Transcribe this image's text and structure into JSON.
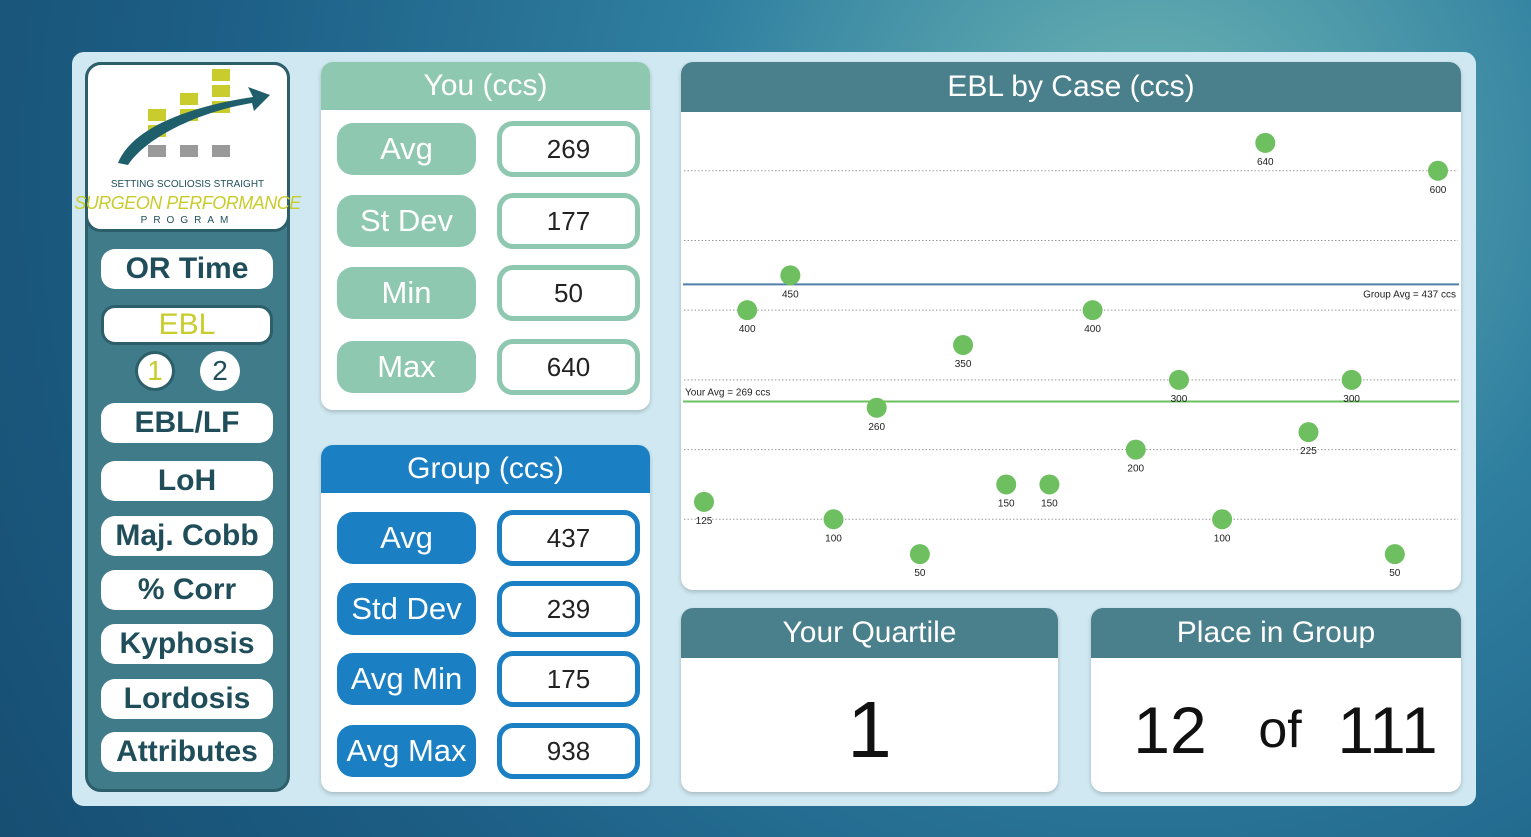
{
  "logo": {
    "tagline": "SETTING SCOLIOSIS STRAIGHT",
    "title": "SURGEON PERFORMANCE",
    "subtitle": "PROGRAM"
  },
  "nav": [
    {
      "label": "OR Time"
    },
    {
      "label": "EBL",
      "active": true
    },
    {
      "label": "EBL/LF"
    },
    {
      "label": "LoH"
    },
    {
      "label": "Maj. Cobb"
    },
    {
      "label": "% Corr"
    },
    {
      "label": "Kyphosis"
    },
    {
      "label": "Lordosis"
    },
    {
      "label": "Attributes"
    }
  ],
  "subnav": [
    "1",
    "2"
  ],
  "you": {
    "title": "You (ccs)",
    "rows": [
      {
        "label": "Avg",
        "value": 269
      },
      {
        "label": "St Dev",
        "value": 177
      },
      {
        "label": "Min",
        "value": 50
      },
      {
        "label": "Max",
        "value": 640
      }
    ]
  },
  "group": {
    "title": "Group (ccs)",
    "rows": [
      {
        "label": "Avg",
        "value": 437
      },
      {
        "label": "Std Dev",
        "value": 239
      },
      {
        "label": "Avg Min",
        "value": 175
      },
      {
        "label": "Avg Max",
        "value": 938
      }
    ]
  },
  "chart_data": {
    "type": "scatter",
    "title": "EBL by Case (ccs)",
    "values": [
      125,
      400,
      450,
      100,
      260,
      50,
      350,
      150,
      150,
      400,
      200,
      300,
      100,
      640,
      225,
      300,
      50,
      600
    ],
    "color": "#6dbf5f",
    "ylim": [
      0,
      680
    ],
    "yticks": [
      100,
      200,
      300,
      400,
      500,
      600
    ],
    "grid": true,
    "reference_lines": [
      {
        "label": "Group Avg = 437 ccs",
        "value": 437,
        "color": "#4f7fa8"
      },
      {
        "label": "Your Avg = 269 ccs",
        "value": 269,
        "color": "#6dbf5f"
      }
    ]
  },
  "quartile": {
    "title": "Your Quartile",
    "value": 1
  },
  "place": {
    "title": "Place in Group",
    "rank": 12,
    "of": "of",
    "total": 111
  }
}
